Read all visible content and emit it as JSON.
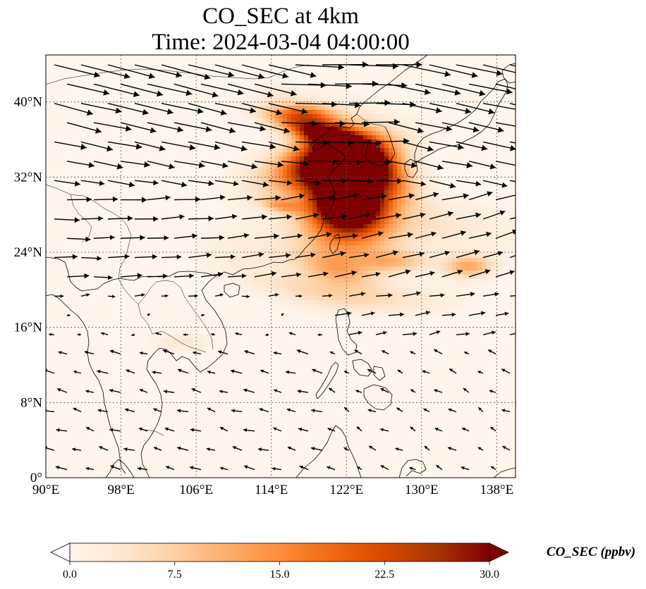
{
  "chart_data": {
    "type": "heatmap",
    "title_line1": "CO_SEC at 4km",
    "title_line2": "Time: 2024-03-04 04:00:00",
    "colorbar_label": "CO_SEC (ppbv)",
    "colorbar_ticks": [
      "0.0",
      "7.5",
      "15.0",
      "22.5",
      "30.0"
    ],
    "colorbar_range": [
      0,
      30
    ],
    "colormap_stops": [
      "#fff5eb",
      "#fee6ce",
      "#fdd0a2",
      "#fdae6b",
      "#fd8d3c",
      "#f16913",
      "#d94801",
      "#a63603",
      "#7f0000"
    ],
    "lon_range": [
      90,
      140
    ],
    "lat_range": [
      0,
      45
    ],
    "lon_ticks": [
      90,
      98,
      106,
      114,
      122,
      130,
      138
    ],
    "lon_tick_labels": [
      "90°E",
      "98°E",
      "106°E",
      "114°E",
      "122°E",
      "130°E",
      "138°E"
    ],
    "lat_ticks": [
      0,
      8,
      16,
      24,
      32,
      40
    ],
    "lat_tick_labels": [
      "0°",
      "8°N",
      "16°N",
      "24°N",
      "32°N",
      "40°N"
    ],
    "gridlines": true,
    "features": [
      "coastlines",
      "borders",
      "wind-vectors"
    ],
    "plumes": [
      {
        "lon": 121.5,
        "lat": 31.5,
        "sx": 3.0,
        "sy": 3.5,
        "rot": 25,
        "amp": 34
      },
      {
        "lon": 120.0,
        "lat": 33.5,
        "sx": 4.5,
        "sy": 1.6,
        "rot": 15,
        "amp": 22
      },
      {
        "lon": 121.5,
        "lat": 35.5,
        "sx": 4.5,
        "sy": 1.2,
        "rot": -35,
        "amp": 20
      },
      {
        "lon": 122.5,
        "lat": 29.0,
        "sx": 2.2,
        "sy": 1.5,
        "rot": 0,
        "amp": 24
      },
      {
        "lon": 118.0,
        "lat": 37.0,
        "sx": 3.5,
        "sy": 0.8,
        "rot": -20,
        "amp": 15
      },
      {
        "lon": 117.5,
        "lat": 38.8,
        "sx": 2.2,
        "sy": 0.5,
        "rot": 0,
        "amp": 8
      },
      {
        "lon": 115.0,
        "lat": 29.0,
        "sx": 1.5,
        "sy": 0.5,
        "rot": -10,
        "amp": 10
      },
      {
        "lon": 125.0,
        "lat": 33.0,
        "sx": 3.0,
        "sy": 2.0,
        "rot": -40,
        "amp": 12
      },
      {
        "lon": 122.0,
        "lat": 26.0,
        "sx": 3.5,
        "sy": 2.5,
        "rot": 0,
        "amp": 10
      },
      {
        "lon": 121.0,
        "lat": 22.0,
        "sx": 3.0,
        "sy": 1.2,
        "rot": -15,
        "amp": 9
      },
      {
        "lon": 127.0,
        "lat": 23.0,
        "sx": 2.5,
        "sy": 0.8,
        "rot": 0,
        "amp": 9
      },
      {
        "lon": 135.0,
        "lat": 22.5,
        "sx": 1.8,
        "sy": 0.8,
        "rot": 0,
        "amp": 12
      },
      {
        "lon": 129.0,
        "lat": 27.0,
        "sx": 7.0,
        "sy": 1.8,
        "rot": -5,
        "amp": 4
      },
      {
        "lon": 118.0,
        "lat": 20.0,
        "sx": 4.0,
        "sy": 1.0,
        "rot": -10,
        "amp": 5
      },
      {
        "lon": 104.5,
        "lat": 14.5,
        "sx": 2.0,
        "sy": 0.6,
        "rot": 0,
        "amp": 3.5
      },
      {
        "lon": 126.0,
        "lat": 19.0,
        "sx": 5.0,
        "sy": 1.0,
        "rot": 0,
        "amp": 4
      },
      {
        "lon": 112.0,
        "lat": 24.0,
        "sx": 4.0,
        "sy": 2.0,
        "rot": 0,
        "amp": 2.5
      }
    ]
  }
}
